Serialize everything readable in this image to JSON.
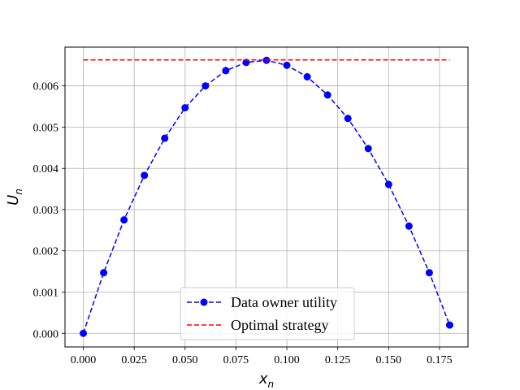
{
  "chart_data": {
    "type": "line",
    "xlabel": {
      "main": "x",
      "sub": "n"
    },
    "ylabel": {
      "main": "U",
      "sub": "n"
    },
    "xlim": [
      -0.009,
      0.189
    ],
    "ylim": [
      -0.00033,
      0.00694
    ],
    "xticks": [
      0.0,
      0.025,
      0.05,
      0.075,
      0.1,
      0.125,
      0.15,
      0.175
    ],
    "xtick_labels": [
      "0.000",
      "0.025",
      "0.050",
      "0.075",
      "0.100",
      "0.125",
      "0.150",
      "0.175"
    ],
    "yticks": [
      0.0,
      0.001,
      0.002,
      0.003,
      0.004,
      0.005,
      0.006
    ],
    "ytick_labels": [
      "0.000",
      "0.001",
      "0.002",
      "0.003",
      "0.004",
      "0.005",
      "0.006"
    ],
    "grid": true,
    "legend_position": "bottom-center",
    "series": [
      {
        "name": "Data owner utility",
        "color": "#0000ff",
        "linestyle": "dashed",
        "marker": "circle",
        "x": [
          0.0,
          0.01,
          0.02,
          0.03,
          0.04,
          0.05,
          0.06,
          0.07,
          0.08,
          0.09,
          0.1,
          0.11,
          0.12,
          0.13,
          0.14,
          0.15,
          0.16,
          0.17,
          0.18
        ],
        "y": [
          0.0,
          0.00147,
          0.00275,
          0.00383,
          0.00473,
          0.00547,
          0.006,
          0.00637,
          0.00657,
          0.00662,
          0.0065,
          0.00622,
          0.00578,
          0.00521,
          0.00448,
          0.00361,
          0.0026,
          0.00147,
          0.0002
        ]
      },
      {
        "name": "Optimal strategy",
        "color": "#ff0000",
        "linestyle": "dashed",
        "marker": "none",
        "x": [
          0.0,
          0.18
        ],
        "y": [
          0.00663,
          0.00663
        ]
      }
    ]
  }
}
